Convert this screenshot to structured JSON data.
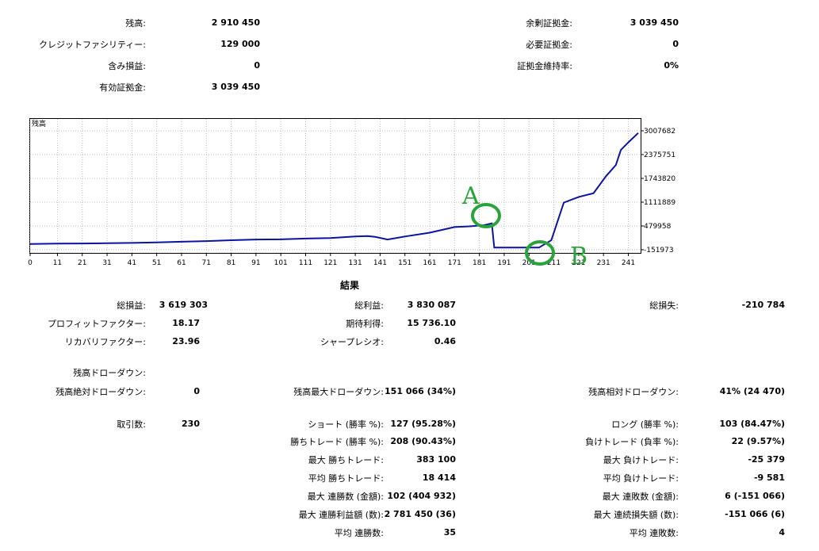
{
  "summary": {
    "left": [
      {
        "label": "残高:",
        "value": "2 910 450"
      },
      {
        "label": "クレジットファシリティー:",
        "value": "129 000"
      },
      {
        "label": "含み損益:",
        "value": "0"
      },
      {
        "label": "有効証拠金:",
        "value": "3 039 450"
      }
    ],
    "right": [
      {
        "label": "余剰証拠金:",
        "value": "3 039 450"
      },
      {
        "label": "必要証拠金:",
        "value": "0"
      },
      {
        "label": "証拠金維持率:",
        "value": "0%"
      }
    ]
  },
  "chart_data": {
    "type": "line",
    "title": "残高",
    "x_ticks": [
      "0",
      "11",
      "21",
      "31",
      "41",
      "51",
      "61",
      "71",
      "81",
      "91",
      "101",
      "111",
      "121",
      "131",
      "141",
      "151",
      "161",
      "171",
      "181",
      "191",
      "201",
      "211",
      "221",
      "231",
      "241"
    ],
    "y_ticks": [
      "3007682",
      "2375751",
      "1743820",
      "1111889",
      "479958",
      "-151973"
    ],
    "ylim": [
      -151973,
      3007682
    ],
    "xlim": [
      0,
      245
    ],
    "grid": true,
    "series": [
      {
        "color": "#0a14a0",
        "points": [
          [
            0,
            0
          ],
          [
            11,
            10000
          ],
          [
            21,
            15000
          ],
          [
            31,
            20000
          ],
          [
            41,
            30000
          ],
          [
            51,
            42000
          ],
          [
            61,
            60000
          ],
          [
            71,
            78000
          ],
          [
            81,
            100000
          ],
          [
            91,
            120000
          ],
          [
            101,
            125000
          ],
          [
            111,
            145000
          ],
          [
            121,
            160000
          ],
          [
            131,
            200000
          ],
          [
            136,
            210000
          ],
          [
            139,
            190000
          ],
          [
            144,
            120000
          ],
          [
            151,
            200000
          ],
          [
            161,
            300000
          ],
          [
            171,
            450000
          ],
          [
            177,
            470000
          ],
          [
            183,
            500000
          ],
          [
            186,
            550000
          ],
          [
            187,
            -95000
          ],
          [
            199,
            -95000
          ],
          [
            205,
            -95000
          ],
          [
            210,
            100000
          ],
          [
            215,
            1100000
          ],
          [
            219,
            1200000
          ],
          [
            221,
            1250000
          ],
          [
            227,
            1350000
          ],
          [
            232,
            1800000
          ],
          [
            236,
            2100000
          ],
          [
            238,
            2500000
          ],
          [
            241,
            2700000
          ],
          [
            245,
            2950000
          ]
        ]
      }
    ],
    "annotations": [
      {
        "text": "A",
        "color": "#2aa43a"
      },
      {
        "text": "B",
        "color": "#2aa43a"
      }
    ]
  },
  "results": {
    "title": "結果",
    "rows_col1": [
      {
        "label": "総損益:",
        "value": "3 619 303"
      },
      {
        "label": "プロフィットファクター:",
        "value": "18.17"
      },
      {
        "label": "リカバリファクター:",
        "value": "23.96"
      },
      {
        "label": "残高ドローダウン:",
        "value": ""
      },
      {
        "label": "残高絶対ドローダウン:",
        "value": "0"
      },
      {
        "label": "取引数:",
        "value": "230"
      }
    ],
    "rows_col2": [
      {
        "label": "総利益:",
        "value": "3 830 087"
      },
      {
        "label": "期待利得:",
        "value": "15 736.10"
      },
      {
        "label": "シャープレシオ:",
        "value": "0.46"
      },
      {
        "label": "残高最大ドローダウン:",
        "value": "151 066 (34%)"
      },
      {
        "label": "ショート (勝率 %):",
        "value": "127 (95.28%)"
      },
      {
        "label": "勝ちトレード (勝率 %):",
        "value": "208 (90.43%)"
      },
      {
        "label": "最大 勝ちトレード:",
        "value": "383 100"
      },
      {
        "label": "平均 勝ちトレード:",
        "value": "18 414"
      },
      {
        "label": "最大 連勝数 (金額):",
        "value": "102 (404 932)"
      },
      {
        "label": "最大 連勝利益額 (数):",
        "value": "2 781 450 (36)"
      },
      {
        "label": "平均 連勝数:",
        "value": "35"
      }
    ],
    "rows_col3": [
      {
        "label": "総損失:",
        "value": "-210 784"
      },
      {
        "label": "残高相対ドローダウン:",
        "value": "41% (24 470)"
      },
      {
        "label": "ロング (勝率 %):",
        "value": "103 (84.47%)"
      },
      {
        "label": "負けトレード (負率 %):",
        "value": "22 (9.57%)"
      },
      {
        "label": "最大 負けトレード:",
        "value": "-25 379"
      },
      {
        "label": "平均 負けトレード:",
        "value": "-9 581"
      },
      {
        "label": "最大 連敗数 (金額):",
        "value": "6 (-151 066)"
      },
      {
        "label": "最大 連続損失額 (数):",
        "value": "-151 066 (6)"
      },
      {
        "label": "平均 連敗数:",
        "value": "4"
      }
    ]
  }
}
